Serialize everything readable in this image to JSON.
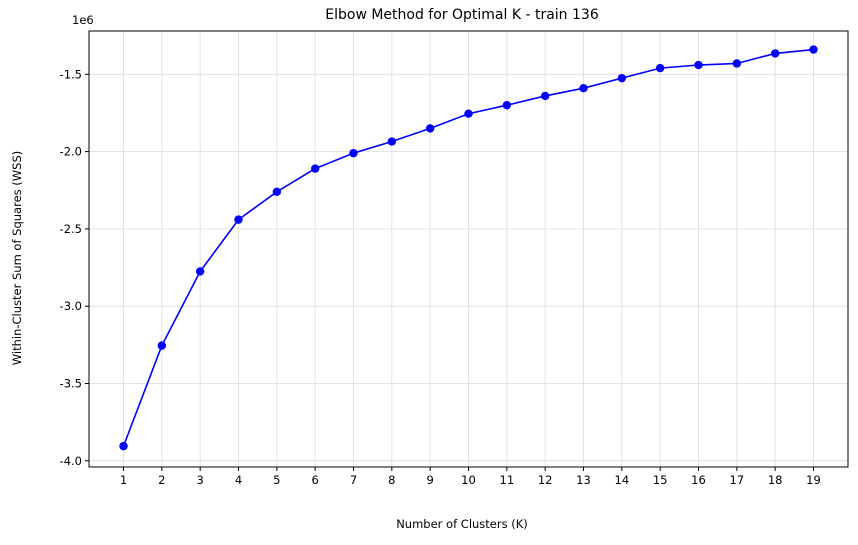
{
  "chart_data": {
    "type": "line",
    "title": "Elbow Method for Optimal K - train 136",
    "xlabel": "Number of Clusters (K)",
    "ylabel": "Within-Cluster Sum of Squares (WSS)",
    "y_offset_label": "1e6",
    "x_tick_labels": [
      "1",
      "2",
      "3",
      "4",
      "5",
      "6",
      "7",
      "8",
      "9",
      "10",
      "11",
      "12",
      "13",
      "14",
      "15",
      "16",
      "17",
      "18",
      "19"
    ],
    "y_tick_labels": [
      "-4.0",
      "-3.5",
      "-3.0",
      "-2.5",
      "-2.0",
      "-1.5"
    ],
    "y_tick_values": [
      -4.0,
      -3.5,
      -3.0,
      -2.5,
      -2.0,
      -1.5
    ],
    "xlim": [
      0.1,
      19.9
    ],
    "ylim": [
      -4.04,
      -1.22
    ],
    "grid": true,
    "line_color": "#0000ff",
    "marker": "circle",
    "series": [
      {
        "x": [
          1,
          2,
          3,
          4,
          5,
          6,
          7,
          8,
          9,
          10,
          11,
          12,
          13,
          14,
          15,
          16,
          17,
          18,
          19
        ],
        "values": [
          -3.905,
          -3.255,
          -2.775,
          -2.44,
          -2.26,
          -2.11,
          -2.01,
          -1.935,
          -1.85,
          -1.755,
          -1.7,
          -1.64,
          -1.59,
          -1.525,
          -1.46,
          -1.44,
          -1.43,
          -1.365,
          -1.34
        ]
      }
    ]
  }
}
